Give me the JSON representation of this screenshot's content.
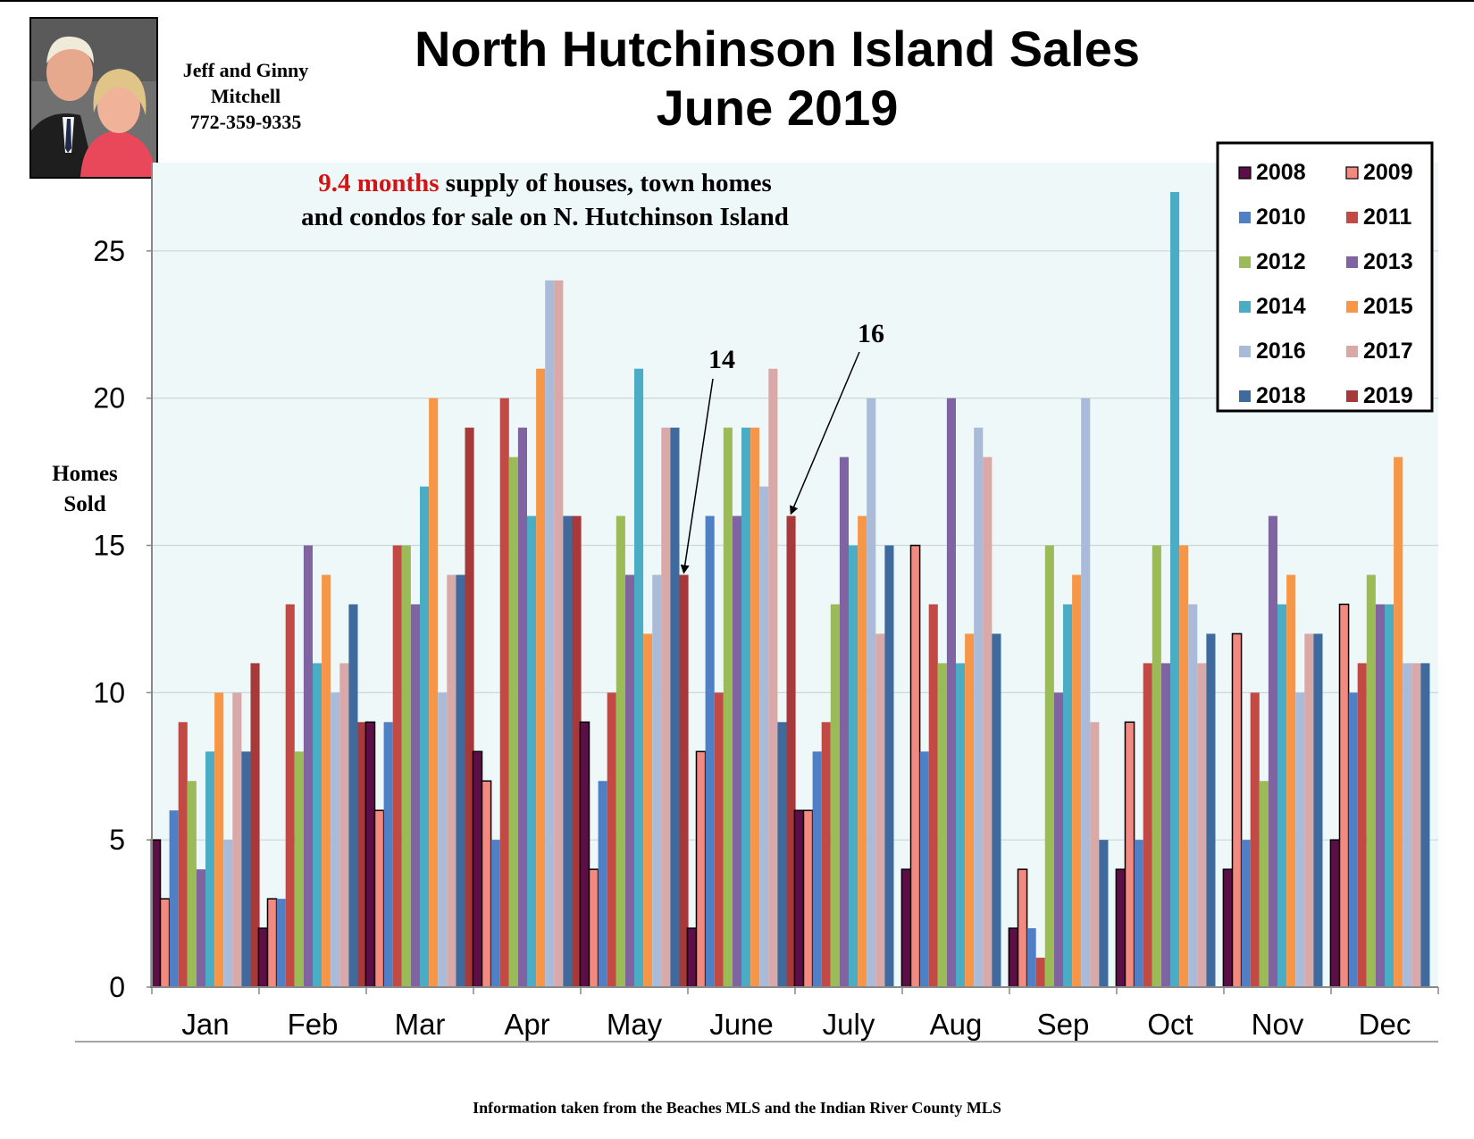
{
  "header": {
    "title_line1": "North Hutchinson Island Sales",
    "title_line2": "June 2019",
    "agent_line1": "Jeff and Ginny",
    "agent_line2": "Mitchell",
    "agent_phone": "772-359-9335"
  },
  "photo": {
    "subject": "agent-couple-portrait"
  },
  "colors": {
    "plot_background": "#EEF8F8",
    "gridline": "#CCD8D8",
    "axis": "#888888",
    "highlight_red": "#D41414"
  },
  "chart_data": {
    "type": "bar",
    "title": "North Hutchinson Island Sales June 2019",
    "ylabel": "Homes Sold",
    "xlabel": "",
    "ylim": [
      0,
      28
    ],
    "yticks": [
      0,
      5,
      10,
      15,
      20,
      25
    ],
    "grid": true,
    "legend_position": "top-right",
    "categories": [
      "Jan",
      "Feb",
      "Mar",
      "Apr",
      "May",
      "June",
      "July",
      "Aug",
      "Sep",
      "Oct",
      "Nov",
      "Dec"
    ],
    "series": [
      {
        "name": "2008",
        "color": "#5C0F47",
        "values": [
          5,
          2,
          9,
          8,
          9,
          2,
          6,
          4,
          2,
          4,
          4,
          5
        ]
      },
      {
        "name": "2009",
        "color": "#F28A82",
        "values": [
          3,
          3,
          6,
          7,
          4,
          8,
          6,
          15,
          4,
          9,
          12,
          13
        ]
      },
      {
        "name": "2010",
        "color": "#4F7FC4",
        "values": [
          6,
          3,
          9,
          5,
          7,
          16,
          8,
          8,
          2,
          5,
          5,
          10
        ]
      },
      {
        "name": "2011",
        "color": "#C24A45",
        "values": [
          9,
          13,
          15,
          20,
          10,
          10,
          9,
          13,
          1,
          11,
          10,
          11
        ]
      },
      {
        "name": "2012",
        "color": "#9BBB59",
        "values": [
          7,
          8,
          15,
          18,
          16,
          19,
          13,
          11,
          15,
          15,
          7,
          14
        ]
      },
      {
        "name": "2013",
        "color": "#8064A2",
        "values": [
          4,
          15,
          13,
          19,
          14,
          16,
          18,
          20,
          10,
          11,
          16,
          13
        ]
      },
      {
        "name": "2014",
        "color": "#4BACC6",
        "values": [
          8,
          11,
          17,
          16,
          21,
          19,
          15,
          11,
          13,
          27,
          13,
          13
        ]
      },
      {
        "name": "2015",
        "color": "#F79646",
        "values": [
          10,
          14,
          20,
          21,
          12,
          19,
          16,
          12,
          14,
          15,
          14,
          18
        ]
      },
      {
        "name": "2016",
        "color": "#AABBD9",
        "values": [
          5,
          10,
          10,
          24,
          14,
          17,
          20,
          19,
          20,
          13,
          10,
          11
        ]
      },
      {
        "name": "2017",
        "color": "#D9A9A7",
        "values": [
          10,
          11,
          14,
          24,
          19,
          21,
          12,
          18,
          9,
          11,
          12,
          11
        ]
      },
      {
        "name": "2018",
        "color": "#3E6A9E",
        "values": [
          8,
          13,
          14,
          16,
          19,
          9,
          15,
          12,
          5,
          12,
          12,
          11
        ]
      },
      {
        "name": "2019",
        "color": "#A8393A",
        "values": [
          11,
          9,
          19,
          16,
          14,
          16,
          null,
          null,
          null,
          null,
          null,
          null
        ]
      }
    ],
    "supply_note": {
      "highlight": "9.4 months",
      "line1_rest": " supply of houses, town homes",
      "line2": "and condos for sale on N. Hutchinson Island"
    },
    "annotations": [
      {
        "text": "14",
        "month": "May",
        "series": "2019",
        "value": 14
      },
      {
        "text": "16",
        "month": "June",
        "series": "2019",
        "value": 16
      }
    ]
  },
  "footer": {
    "source": "Information taken from the Beaches MLS and the Indian River County MLS"
  }
}
